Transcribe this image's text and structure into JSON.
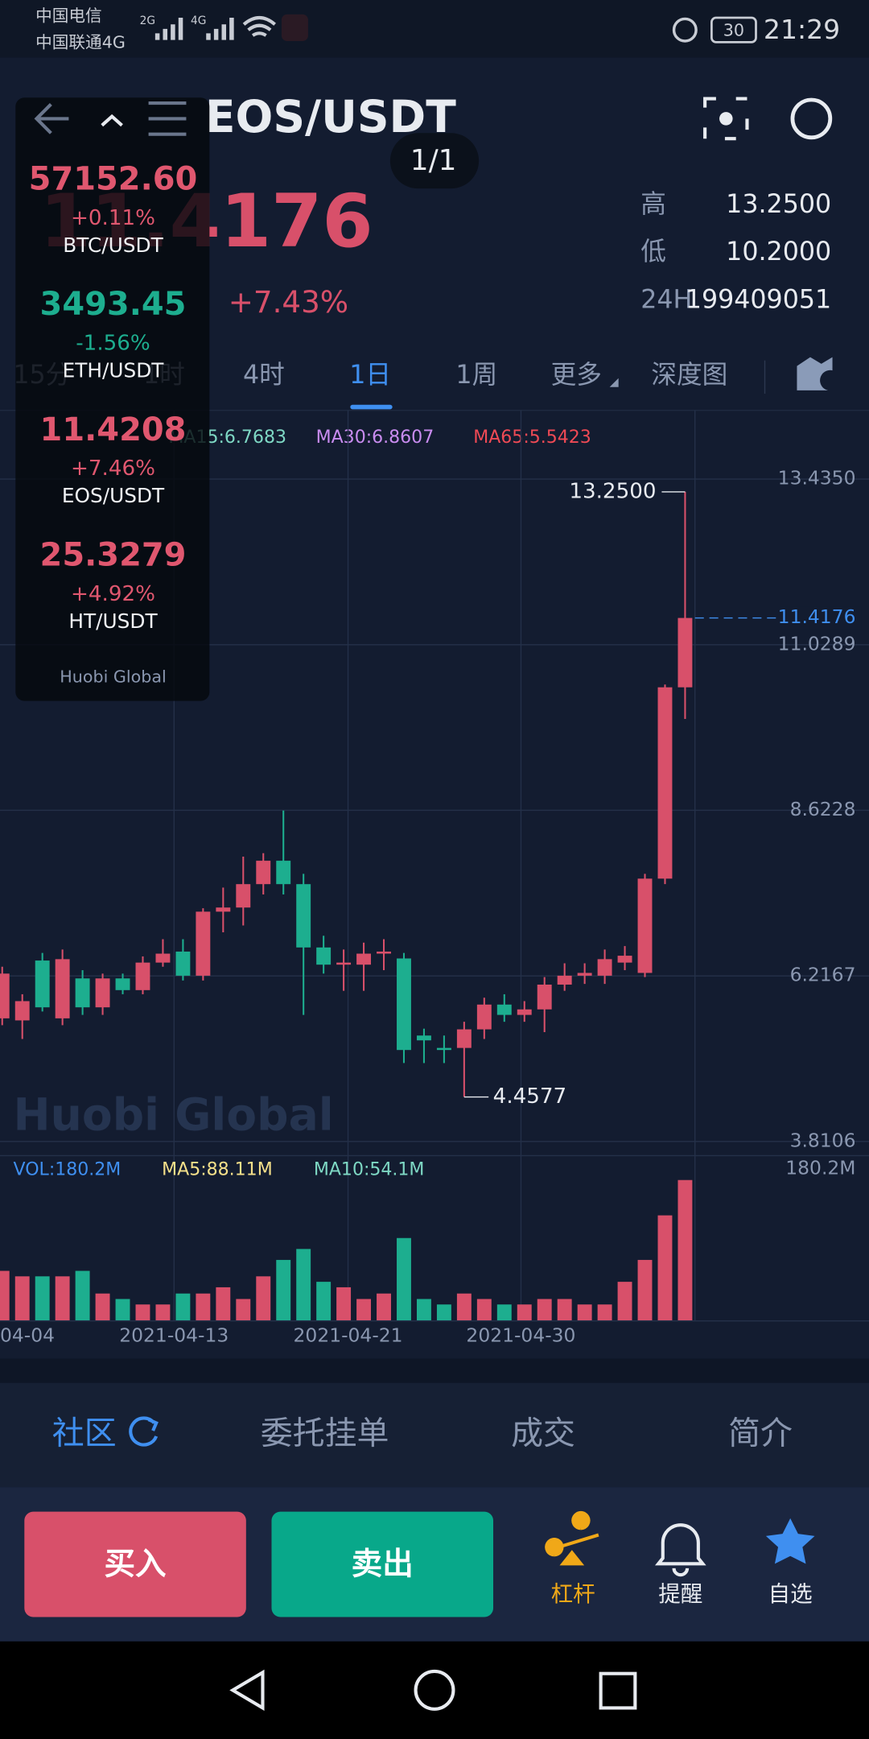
{
  "status": {
    "carrier1": "中国电信",
    "carrier2": "中国联通4G",
    "net1": "2G",
    "net2": "4G",
    "battery": "30",
    "time": "21:29"
  },
  "header": {
    "pair": "EOS/USDT",
    "page": "1/1",
    "price": "11.4176",
    "change": "+7.43%",
    "high_label": "高",
    "high": "13.2500",
    "low_label": "低",
    "low": "10.2000",
    "vol_label": "24H",
    "vol": "199409051"
  },
  "tabs": [
    "15分",
    "1时",
    "4时",
    "1日",
    "1周",
    "更多",
    "深度图"
  ],
  "ma_legend": [
    "MA15:6.7683",
    "MA30:6.8607",
    "MA65:5.5423"
  ],
  "chart": {
    "type": "candlestick",
    "ylim": [
      3.605,
      14.402
    ],
    "yticks": [
      {
        "value": 13.435,
        "label": "13.4350"
      },
      {
        "value": 11.0289,
        "label": "11.0289"
      },
      {
        "value": 8.6228,
        "label": "8.6228"
      },
      {
        "value": 6.2167,
        "label": "6.2167"
      },
      {
        "value": 3.8106,
        "label": "3.8106"
      }
    ],
    "up_color": "#d8506a",
    "down_color": "#1dae8f",
    "grid": true,
    "candles": [
      [
        5.6,
        6.35,
        5.5,
        6.25
      ],
      [
        5.57,
        5.95,
        5.3,
        5.85
      ],
      [
        6.44,
        6.55,
        5.7,
        5.76
      ],
      [
        5.6,
        6.6,
        5.5,
        6.46
      ],
      [
        6.18,
        6.3,
        5.65,
        5.76
      ],
      [
        5.76,
        6.25,
        5.65,
        6.18
      ],
      [
        6.18,
        6.25,
        5.95,
        6.01
      ],
      [
        6.01,
        6.5,
        5.95,
        6.41
      ],
      [
        6.41,
        6.75,
        6.35,
        6.54
      ],
      [
        6.57,
        6.75,
        6.15,
        6.22
      ],
      [
        6.22,
        7.2,
        6.15,
        7.15
      ],
      [
        7.15,
        7.5,
        6.85,
        7.21
      ],
      [
        7.21,
        7.95,
        6.95,
        7.55
      ],
      [
        7.55,
        8.0,
        7.4,
        7.89
      ],
      [
        7.89,
        8.62,
        7.4,
        7.55
      ],
      [
        7.55,
        7.7,
        5.65,
        6.63
      ],
      [
        6.63,
        6.8,
        6.25,
        6.38
      ],
      [
        6.38,
        6.6,
        6.0,
        6.41
      ],
      [
        6.38,
        6.7,
        6.0,
        6.54
      ],
      [
        6.54,
        6.75,
        6.3,
        6.57
      ],
      [
        6.47,
        6.55,
        4.95,
        5.14
      ],
      [
        5.35,
        5.45,
        4.95,
        5.28
      ],
      [
        5.17,
        5.35,
        4.95,
        5.14
      ],
      [
        5.17,
        5.55,
        4.4577,
        5.44
      ],
      [
        5.44,
        5.9,
        5.3,
        5.8
      ],
      [
        5.8,
        5.95,
        5.55,
        5.65
      ],
      [
        5.65,
        5.85,
        5.55,
        5.73
      ],
      [
        5.73,
        6.2,
        5.4,
        6.09
      ],
      [
        6.09,
        6.4,
        6.0,
        6.22
      ],
      [
        6.22,
        6.4,
        6.1,
        6.26
      ],
      [
        6.22,
        6.6,
        6.1,
        6.46
      ],
      [
        6.41,
        6.65,
        6.3,
        6.51
      ],
      [
        6.26,
        7.7,
        6.2,
        7.63
      ],
      [
        7.63,
        10.45,
        7.55,
        10.41
      ],
      [
        10.41,
        13.25,
        9.95,
        11.4176
      ]
    ],
    "high_mark": {
      "value": 13.25,
      "label": "13.2500"
    },
    "low_mark": {
      "value": 4.4577,
      "label": "4.4577"
    },
    "last": {
      "value": 11.4176,
      "label": "11.4176"
    },
    "xticks": [
      "04-04",
      "2021-04-13",
      "2021-04-21",
      "2021-04-30"
    ],
    "volume": {
      "legend": [
        "VOL:180.2M",
        "MA5:88.11M",
        "MA10:54.1M"
      ],
      "ylim": [
        0,
        180.2
      ],
      "ytick": {
        "value": 180.2,
        "label": "180.2M"
      },
      "values": [
        64,
        57,
        57,
        57,
        64,
        35,
        28,
        21,
        21,
        35,
        35,
        43,
        28,
        57,
        78,
        92,
        50,
        43,
        28,
        35,
        106,
        28,
        21,
        35,
        28,
        21,
        21,
        28,
        28,
        21,
        21,
        50,
        78,
        135,
        180.2
      ]
    }
  },
  "overlay": {
    "items": [
      {
        "price": "57152.60",
        "change": "+0.11%",
        "pair": "BTC/USDT",
        "color": "#e0576f"
      },
      {
        "price": "3493.45",
        "change": "-1.56%",
        "pair": "ETH/USDT",
        "color": "#1dae8f"
      },
      {
        "price": "11.4208",
        "change": "+7.46%",
        "pair": "EOS/USDT",
        "color": "#e0576f"
      },
      {
        "price": "25.3279",
        "change": "+4.92%",
        "pair": "HT/USDT",
        "color": "#e0576f"
      }
    ],
    "brand": "Huobi Global"
  },
  "watermark": "Huobi Global",
  "bottom_tabs": [
    "社区",
    "委托挂单",
    "成交",
    "简介"
  ],
  "actions": {
    "buy": "买入",
    "sell": "卖出",
    "leverage": "杠杆",
    "alert": "提醒",
    "favorite": "自选"
  }
}
